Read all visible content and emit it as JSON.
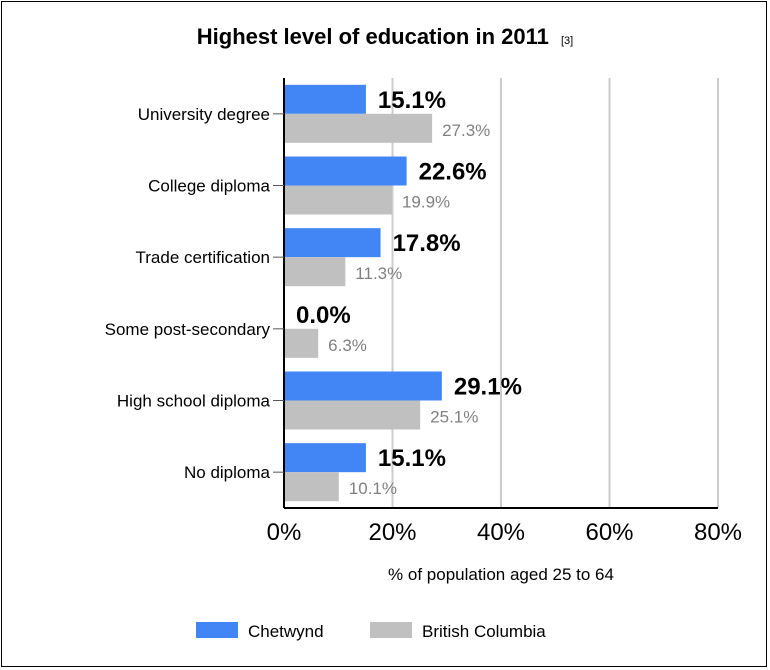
{
  "chart_data": {
    "type": "bar",
    "orientation": "horizontal",
    "title": "Highest level of education in 2011",
    "title_ref": "[3]",
    "xlabel": "% of population aged 25 to 64",
    "ylabel": "",
    "xlim": [
      0,
      80
    ],
    "xticks": [
      0,
      20,
      40,
      60,
      80
    ],
    "xtick_labels": [
      "0%",
      "20%",
      "40%",
      "60%",
      "80%"
    ],
    "grid": true,
    "legend_position": "bottom",
    "categories": [
      "University degree",
      "College diploma",
      "Trade certification",
      "Some post-secondary",
      "High school diploma",
      "No diploma"
    ],
    "series": [
      {
        "name": "Chetwynd",
        "color": "#4285f4",
        "values": [
          15.1,
          22.6,
          17.8,
          0.0,
          29.1,
          15.1
        ],
        "labels": [
          "15.1%",
          "22.6%",
          "17.8%",
          "0.0%",
          "29.1%",
          "15.1%"
        ]
      },
      {
        "name": "British Columbia",
        "color": "#c0c0c0",
        "values": [
          27.3,
          19.9,
          11.3,
          6.3,
          25.1,
          10.1
        ],
        "labels": [
          "27.3%",
          "19.9%",
          "11.3%",
          "6.3%",
          "25.1%",
          "10.1%"
        ]
      }
    ]
  }
}
